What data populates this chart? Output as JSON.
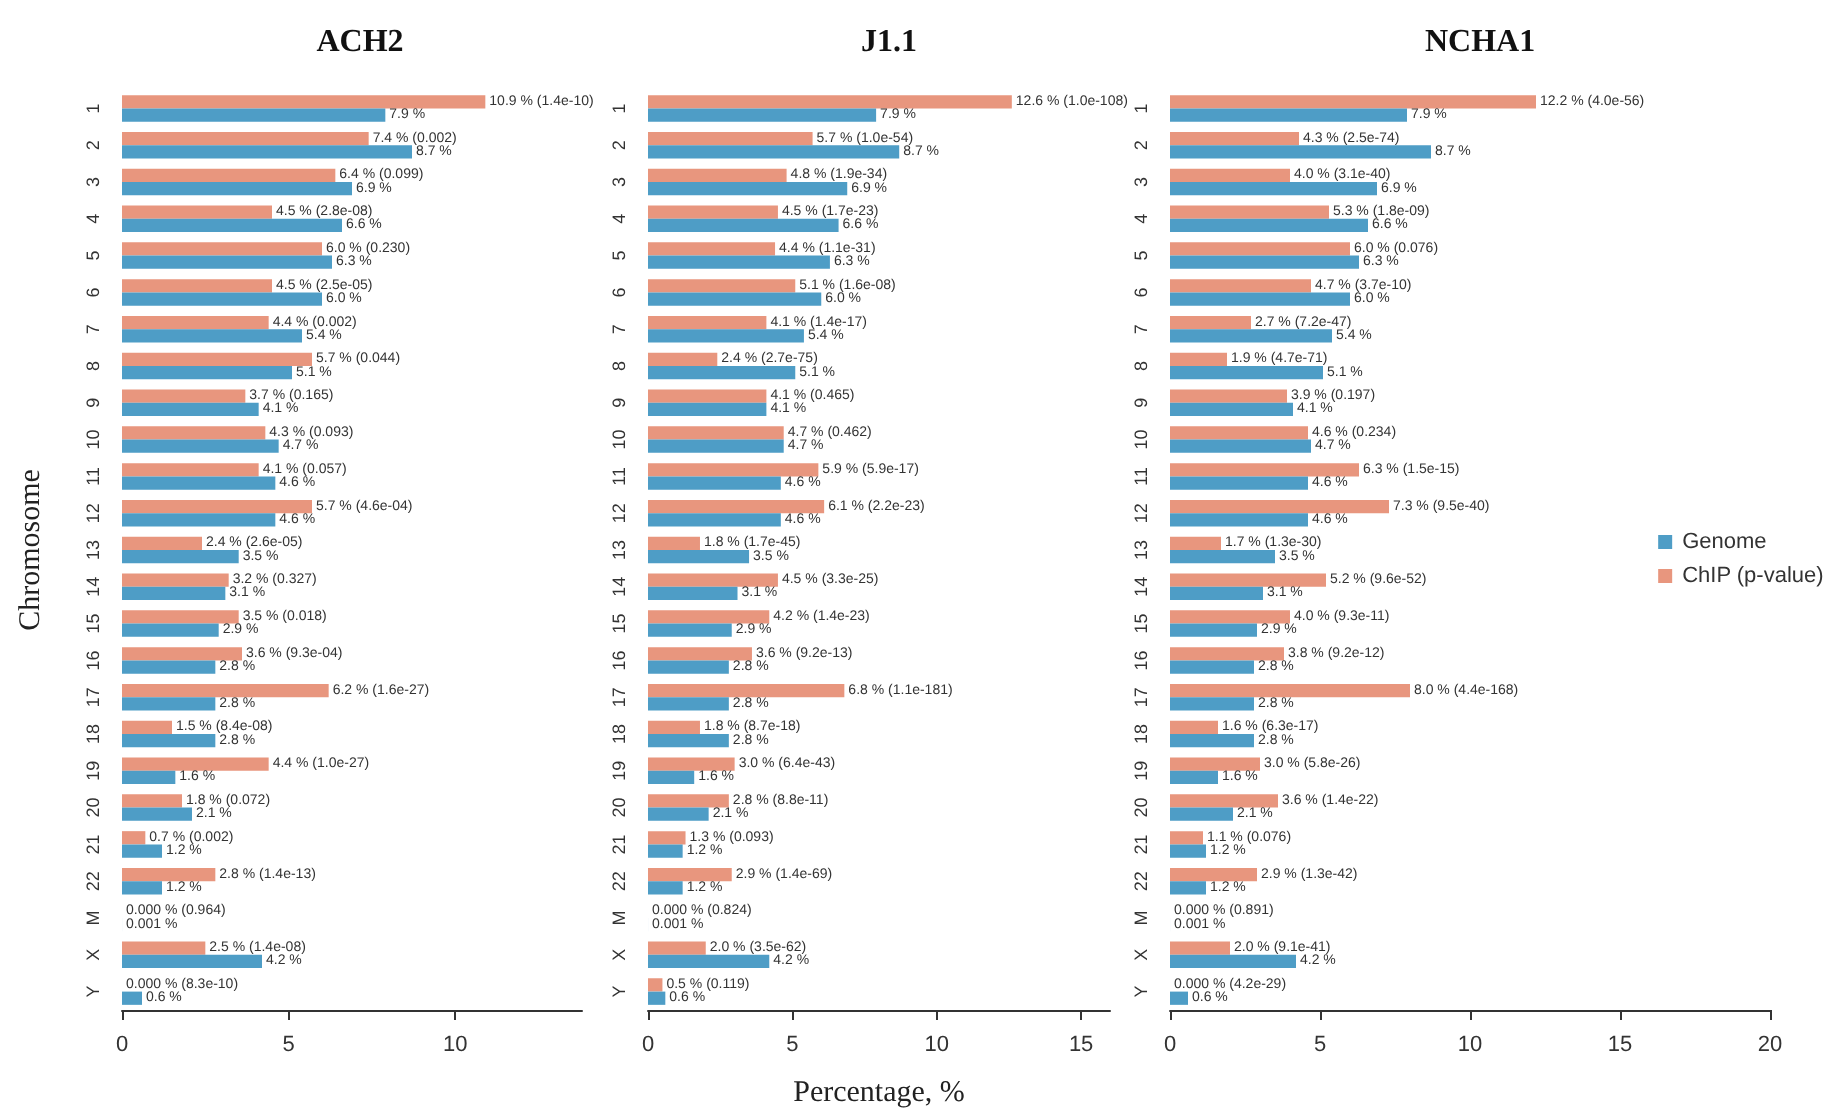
{
  "chart_data": [
    {
      "type": "bar",
      "orientation": "horizontal",
      "title": "ACH2",
      "ylabel": "Chromosome",
      "categories": [
        "1",
        "2",
        "3",
        "4",
        "5",
        "6",
        "7",
        "8",
        "9",
        "10",
        "11",
        "12",
        "13",
        "14",
        "15",
        "16",
        "17",
        "18",
        "19",
        "20",
        "21",
        "22",
        "M",
        "X",
        "Y"
      ],
      "xlim": [
        0,
        13.8
      ],
      "xticks": [
        0,
        5,
        10
      ],
      "legend": false,
      "series": [
        {
          "color": "#e8967e",
          "values": [
            10.9,
            7.4,
            6.4,
            4.5,
            6.0,
            4.5,
            4.4,
            5.7,
            3.7,
            4.3,
            4.1,
            5.7,
            2.4,
            3.2,
            3.5,
            3.6,
            6.2,
            1.5,
            4.4,
            1.8,
            0.7,
            2.8,
            0.0,
            2.5,
            0.0
          ],
          "value_labels": [
            "10.9 % (1.4e-10)",
            "7.4 % (0.002)",
            "6.4 % (0.099)",
            "4.5 % (2.8e-08)",
            "6.0 % (0.230)",
            "4.5 % (2.5e-05)",
            "4.4 % (0.002)",
            "5.7 % (0.044)",
            "3.7 % (0.165)",
            "4.3 % (0.093)",
            "4.1 % (0.057)",
            "5.7 % (4.6e-04)",
            "2.4 % (2.6e-05)",
            "3.2 % (0.327)",
            "3.5 % (0.018)",
            "3.6 % (9.3e-04)",
            "6.2 % (1.6e-27)",
            "1.5 % (8.4e-08)",
            "4.4 % (1.0e-27)",
            "1.8 % (0.072)",
            "0.7 % (0.002)",
            "2.8 % (1.4e-13)",
            "0.000 % (0.964)",
            "2.5 % (1.4e-08)",
            "0.000 % (8.3e-10)"
          ]
        },
        {
          "color": "#4e9dc6",
          "values": [
            7.9,
            8.7,
            6.9,
            6.6,
            6.3,
            6.0,
            5.4,
            5.1,
            4.1,
            4.7,
            4.6,
            4.6,
            3.5,
            3.1,
            2.9,
            2.8,
            2.8,
            2.8,
            1.6,
            2.1,
            1.2,
            1.2,
            0.001,
            4.2,
            0.6
          ],
          "value_labels": [
            "7.9 %",
            "8.7 %",
            "6.9 %",
            "6.6 %",
            "6.3 %",
            "6.0 %",
            "5.4 %",
            "5.1 %",
            "4.1 %",
            "4.7 %",
            "4.6 %",
            "4.6 %",
            "3.5 %",
            "3.1 %",
            "2.9 %",
            "2.8 %",
            "2.8 %",
            "2.8 %",
            "1.6 %",
            "2.1 %",
            "1.2 %",
            "1.2 %",
            "0.001 %",
            "4.2 %",
            "0.6 %"
          ]
        }
      ]
    },
    {
      "type": "bar",
      "orientation": "horizontal",
      "title": "J1.1",
      "xlabel": "Percentage, %",
      "categories": [
        "1",
        "2",
        "3",
        "4",
        "5",
        "6",
        "7",
        "8",
        "9",
        "10",
        "11",
        "12",
        "13",
        "14",
        "15",
        "16",
        "17",
        "18",
        "19",
        "20",
        "21",
        "22",
        "M",
        "X",
        "Y"
      ],
      "xlim": [
        0,
        16
      ],
      "xticks": [
        0,
        5,
        10,
        15
      ],
      "legend": false,
      "series": [
        {
          "color": "#e8967e",
          "values": [
            12.6,
            5.7,
            4.8,
            4.5,
            4.4,
            5.1,
            4.1,
            2.4,
            4.1,
            4.7,
            5.9,
            6.1,
            1.8,
            4.5,
            4.2,
            3.6,
            6.8,
            1.8,
            3.0,
            2.8,
            1.3,
            2.9,
            0.0,
            2.0,
            0.5
          ],
          "value_labels": [
            "12.6 % (1.0e-108)",
            "5.7 % (1.0e-54)",
            "4.8 % (1.9e-34)",
            "4.5 % (1.7e-23)",
            "4.4 % (1.1e-31)",
            "5.1 % (1.6e-08)",
            "4.1 % (1.4e-17)",
            "2.4 % (2.7e-75)",
            "4.1 % (0.465)",
            "4.7 % (0.462)",
            "5.9 % (5.9e-17)",
            "6.1 % (2.2e-23)",
            "1.8 % (1.7e-45)",
            "4.5 % (3.3e-25)",
            "4.2 % (1.4e-23)",
            "3.6 % (9.2e-13)",
            "6.8 % (1.1e-181)",
            "1.8 % (8.7e-18)",
            "3.0 % (6.4e-43)",
            "2.8 % (8.8e-11)",
            "1.3 % (0.093)",
            "2.9 % (1.4e-69)",
            "0.000 % (0.824)",
            "2.0 % (3.5e-62)",
            "0.5 % (0.119)"
          ]
        },
        {
          "color": "#4e9dc6",
          "values": [
            7.9,
            8.7,
            6.9,
            6.6,
            6.3,
            6.0,
            5.4,
            5.1,
            4.1,
            4.7,
            4.6,
            4.6,
            3.5,
            3.1,
            2.9,
            2.8,
            2.8,
            2.8,
            1.6,
            2.1,
            1.2,
            1.2,
            0.001,
            4.2,
            0.6
          ],
          "value_labels": [
            "7.9 %",
            "8.7 %",
            "6.9 %",
            "6.6 %",
            "6.3 %",
            "6.0 %",
            "5.4 %",
            "5.1 %",
            "4.1 %",
            "4.7 %",
            "4.6 %",
            "4.6 %",
            "3.5 %",
            "3.1 %",
            "2.9 %",
            "2.8 %",
            "2.8 %",
            "2.8 %",
            "1.6 %",
            "2.1 %",
            "1.2 %",
            "1.2 %",
            "0.001 %",
            "4.2 %",
            "0.6 %"
          ]
        }
      ]
    },
    {
      "type": "bar",
      "orientation": "horizontal",
      "title": "NCHA1",
      "categories": [
        "1",
        "2",
        "3",
        "4",
        "5",
        "6",
        "7",
        "8",
        "9",
        "10",
        "11",
        "12",
        "13",
        "14",
        "15",
        "16",
        "17",
        "18",
        "19",
        "20",
        "21",
        "22",
        "M",
        "X",
        "Y"
      ],
      "xlim": [
        0,
        20
      ],
      "xticks": [
        0,
        5,
        10,
        15,
        20
      ],
      "legend": "right",
      "series": [
        {
          "name": "ChIP (p-value)",
          "color": "#e8967e",
          "values": [
            12.2,
            4.3,
            4.0,
            5.3,
            6.0,
            4.7,
            2.7,
            1.9,
            3.9,
            4.6,
            6.3,
            7.3,
            1.7,
            5.2,
            4.0,
            3.8,
            8.0,
            1.6,
            3.0,
            3.6,
            1.1,
            2.9,
            0.0,
            2.0,
            0.0
          ],
          "value_labels": [
            "12.2 % (4.0e-56)",
            "4.3 % (2.5e-74)",
            "4.0 % (3.1e-40)",
            "5.3 % (1.8e-09)",
            "6.0 % (0.076)",
            "4.7 % (3.7e-10)",
            "2.7 % (7.2e-47)",
            "1.9 % (4.7e-71)",
            "3.9 % (0.197)",
            "4.6 % (0.234)",
            "6.3 % (1.5e-15)",
            "7.3 % (9.5e-40)",
            "1.7 % (1.3e-30)",
            "5.2 % (9.6e-52)",
            "4.0 % (9.3e-11)",
            "3.8 % (9.2e-12)",
            "8.0 % (4.4e-168)",
            "1.6 % (6.3e-17)",
            "3.0 % (5.8e-26)",
            "3.6 % (1.4e-22)",
            "1.1 % (0.076)",
            "2.9 % (1.3e-42)",
            "0.000 % (0.891)",
            "2.0 % (9.1e-41)",
            "0.000 % (4.2e-29)"
          ]
        },
        {
          "name": "Genome",
          "color": "#4e9dc6",
          "values": [
            7.9,
            8.7,
            6.9,
            6.6,
            6.3,
            6.0,
            5.4,
            5.1,
            4.1,
            4.7,
            4.6,
            4.6,
            3.5,
            3.1,
            2.9,
            2.8,
            2.8,
            2.8,
            1.6,
            2.1,
            1.2,
            1.2,
            0.001,
            4.2,
            0.6
          ],
          "value_labels": [
            "7.9 %",
            "8.7 %",
            "6.9 %",
            "6.6 %",
            "6.3 %",
            "6.0 %",
            "5.4 %",
            "5.1 %",
            "4.1 %",
            "4.7 %",
            "4.6 %",
            "4.6 %",
            "3.5 %",
            "3.1 %",
            "2.9 %",
            "2.8 %",
            "2.8 %",
            "2.8 %",
            "1.6 %",
            "2.1 %",
            "1.2 %",
            "1.2 %",
            "0.001 %",
            "4.2 %",
            "0.6 %"
          ]
        }
      ]
    }
  ]
}
